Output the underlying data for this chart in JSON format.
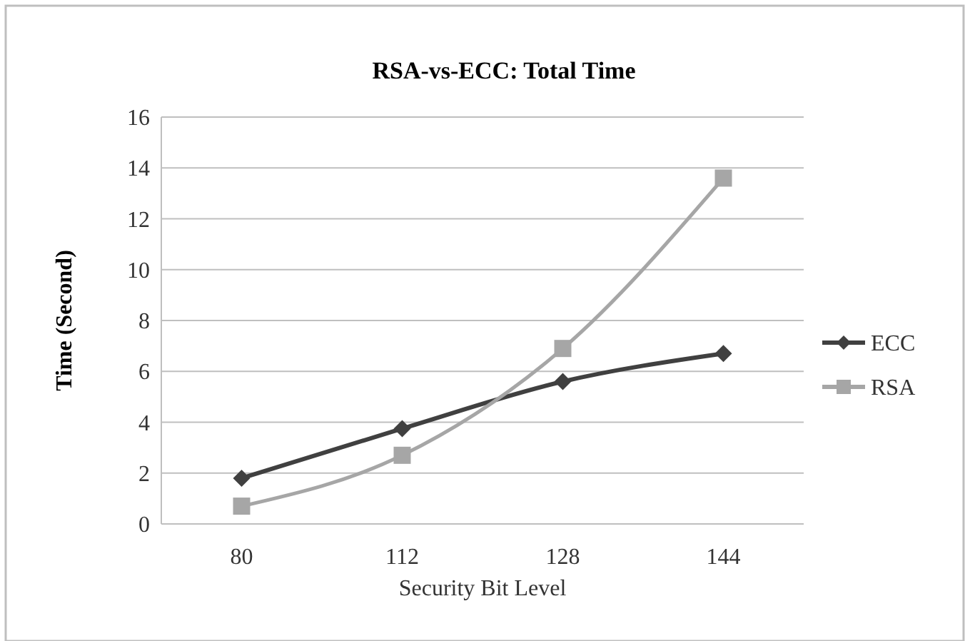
{
  "chart_data": {
    "type": "line",
    "title": "RSA-vs-ECC: Total Time",
    "xlabel": "Security Bit Level",
    "ylabel": "Time (Second)",
    "categories": [
      "80",
      "112",
      "128",
      "144"
    ],
    "series": [
      {
        "name": "ECC",
        "color": "#404040",
        "marker": "diamond",
        "values": [
          1.8,
          3.75,
          5.6,
          6.7
        ]
      },
      {
        "name": "RSA",
        "color": "#a6a6a6",
        "marker": "square",
        "values": [
          0.7,
          2.7,
          6.9,
          13.6
        ]
      }
    ],
    "ylim": [
      0,
      16
    ],
    "yticks": [
      0,
      2,
      4,
      6,
      8,
      10,
      12,
      14,
      16
    ],
    "grid": "y",
    "legend": "right",
    "line_style": "solid"
  }
}
